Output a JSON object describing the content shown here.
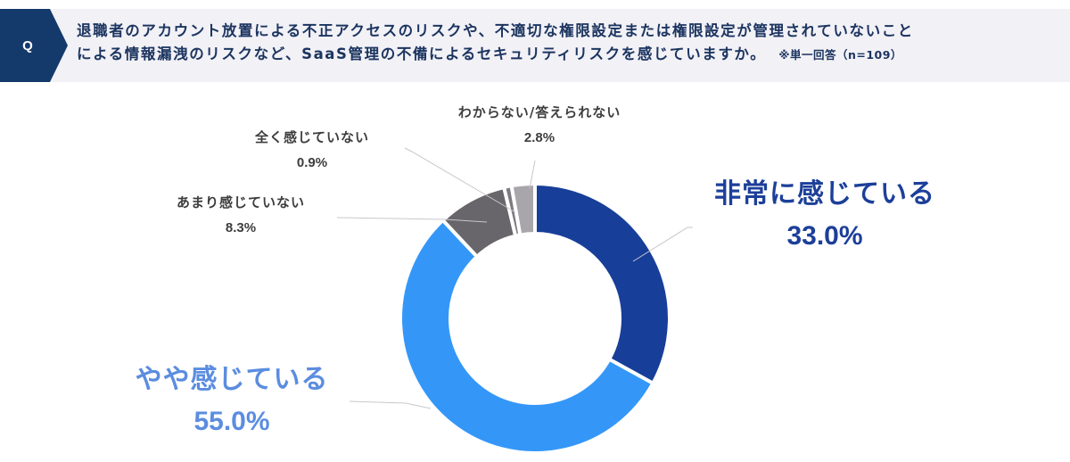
{
  "header": {
    "badge": "Q",
    "question_line1": "退職者のアカウント放置による不正アクセスのリスクや、不適切な権限設定または権限設定が管理されていないこと",
    "question_line2": "による情報漏洩のリスクなど、SaaS管理の不備によるセキュリティリスクを感じていますか。",
    "note": "※単一回答（n=109）",
    "badge_color": "#14396b",
    "background_color": "#f2f1f6"
  },
  "chart_data": {
    "type": "pie",
    "variant": "donut",
    "title": "退職者のアカウント放置による不正アクセスのリスクや、不適切な権限設定または権限設定が管理されていないことによる情報漏洩のリスクなど、SaaS管理の不備によるセキュリティリスクを感じていますか。",
    "subtitle": "※単一回答（n=109）",
    "start_angle": "12 o'clock, clockwise",
    "categories": [
      "非常に感じている",
      "やや感じている",
      "あまり感じていない",
      "全く感じていない",
      "わからない/答えられない"
    ],
    "values": [
      33.0,
      55.0,
      8.3,
      0.9,
      2.8
    ],
    "unit": "%",
    "colors": [
      "#173f99",
      "#3497f8",
      "#68666b",
      "#7d7b80",
      "#a8a6ab"
    ],
    "value_labels": [
      "33.0%",
      "55.0%",
      "8.3%",
      "0.9%",
      "2.8%"
    ],
    "legend": "none (callout labels with leader lines)"
  },
  "labels": {
    "very": {
      "text": "非常に感じている",
      "value": "33.0%"
    },
    "somewhat": {
      "text": "やや感じている",
      "value": "55.0%"
    },
    "not_much": {
      "text": "あまり感じていない",
      "value": "8.3%"
    },
    "not_at_all": {
      "text": "全く感じていない",
      "value": "0.9%"
    },
    "unknown": {
      "text": "わからない/答えられない",
      "value": "2.8%"
    }
  }
}
